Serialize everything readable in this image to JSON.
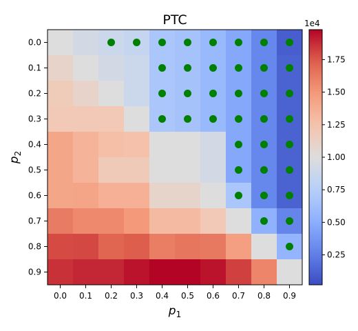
{
  "chart_data": {
    "type": "heatmap",
    "title": "PTC",
    "xlabel_base": "p",
    "xlabel_sub": "1",
    "ylabel_base": "p",
    "ylabel_sub": "2",
    "x_ticks": [
      "0.0",
      "0.1",
      "0.2",
      "0.3",
      "0.4",
      "0.5",
      "0.6",
      "0.7",
      "0.8",
      "0.9"
    ],
    "y_ticks": [
      "0.0",
      "0.1",
      "0.2",
      "0.3",
      "0.4",
      "0.5",
      "0.6",
      "0.7",
      "0.8",
      "0.9"
    ],
    "colormap": "coolwarm",
    "color_range": [
      200,
      19800
    ],
    "colorbar_scale_label": "1e4",
    "colorbar_ticks": [
      {
        "value": 2500,
        "label": "0.25"
      },
      {
        "value": 5000,
        "label": "0.50"
      },
      {
        "value": 7500,
        "label": "0.75"
      },
      {
        "value": 10000,
        "label": "1.00"
      },
      {
        "value": 12500,
        "label": "1.25"
      },
      {
        "value": 15000,
        "label": "1.50"
      },
      {
        "value": 17500,
        "label": "1.75"
      }
    ],
    "values": [
      [
        10000,
        9300,
        8800,
        8400,
        6800,
        6500,
        5800,
        4700,
        2900,
        1000
      ],
      [
        11000,
        10000,
        9300,
        8800,
        6800,
        6500,
        5800,
        4700,
        2900,
        1200
      ],
      [
        11800,
        11000,
        10000,
        8800,
        6800,
        6500,
        5800,
        4700,
        2900,
        1200
      ],
      [
        12000,
        12000,
        12000,
        10000,
        6800,
        6500,
        5800,
        4700,
        2900,
        1200
      ],
      [
        14200,
        13400,
        12800,
        12600,
        10000,
        10000,
        9300,
        4700,
        2900,
        1200
      ],
      [
        14200,
        13400,
        11900,
        11900,
        10000,
        10000,
        9300,
        4700,
        2900,
        1200
      ],
      [
        14200,
        14300,
        13600,
        13600,
        10900,
        10900,
        10000,
        6800,
        2900,
        1200
      ],
      [
        16200,
        15600,
        15600,
        14900,
        13000,
        13000,
        12000,
        10000,
        5200,
        2800
      ],
      [
        17900,
        18000,
        17100,
        17400,
        16100,
        16400,
        16300,
        14600,
        10000,
        5500
      ],
      [
        18600,
        18900,
        18900,
        19400,
        19800,
        19800,
        19400,
        18200,
        15800,
        10000
      ]
    ],
    "markers": [
      [
        0,
        2
      ],
      [
        0,
        3
      ],
      [
        0,
        4
      ],
      [
        0,
        5
      ],
      [
        0,
        6
      ],
      [
        0,
        7
      ],
      [
        0,
        8
      ],
      [
        0,
        9
      ],
      [
        1,
        4
      ],
      [
        1,
        5
      ],
      [
        1,
        6
      ],
      [
        1,
        7
      ],
      [
        1,
        8
      ],
      [
        1,
        9
      ],
      [
        2,
        4
      ],
      [
        2,
        5
      ],
      [
        2,
        6
      ],
      [
        2,
        7
      ],
      [
        2,
        8
      ],
      [
        2,
        9
      ],
      [
        3,
        4
      ],
      [
        3,
        5
      ],
      [
        3,
        6
      ],
      [
        3,
        7
      ],
      [
        3,
        8
      ],
      [
        3,
        9
      ],
      [
        4,
        7
      ],
      [
        4,
        8
      ],
      [
        4,
        9
      ],
      [
        5,
        7
      ],
      [
        5,
        8
      ],
      [
        5,
        9
      ],
      [
        6,
        7
      ],
      [
        6,
        8
      ],
      [
        6,
        9
      ],
      [
        7,
        8
      ],
      [
        7,
        9
      ],
      [
        8,
        9
      ]
    ],
    "marker_color": "#008000"
  }
}
